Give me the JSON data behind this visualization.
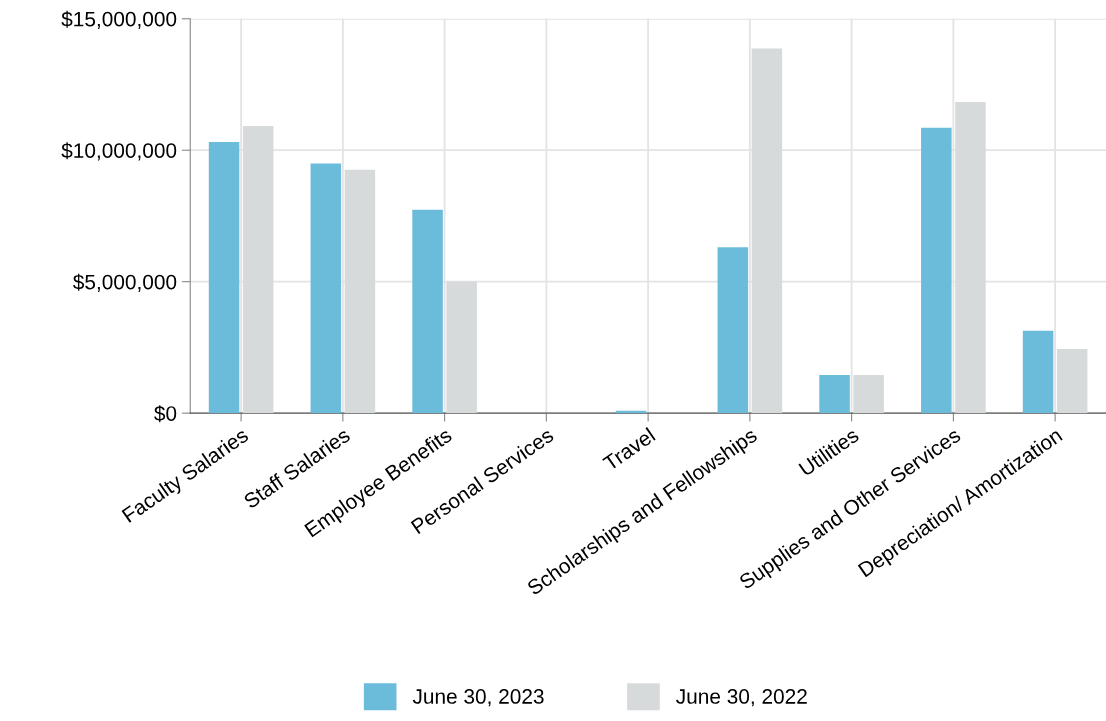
{
  "chart_data": {
    "type": "bar",
    "categories": [
      "Faculty Salaries",
      "Staff Salaries",
      "Employee Benefits",
      "Personal Services",
      "Travel",
      "Scholarships and Fellowships",
      "Utilities",
      "Supplies and Other Services",
      "Depreciation/ Amortization"
    ],
    "series": [
      {
        "name": "June 30, 2023",
        "color": "#6bbbdb",
        "values": [
          10310000,
          9490000,
          7740000,
          0,
          90000,
          6310000,
          1450000,
          10850000,
          3130000
        ]
      },
      {
        "name": "June 30, 2022",
        "color": "#d7dadb",
        "values": [
          10920000,
          9260000,
          5010000,
          0,
          0,
          13870000,
          1450000,
          11830000,
          2440000
        ]
      }
    ],
    "ylim": [
      0,
      15000000
    ],
    "yticks": [
      {
        "value": 0,
        "label": "$0"
      },
      {
        "value": 5000000,
        "label": "$5,000,000"
      },
      {
        "value": 10000000,
        "label": "$10,000,000"
      },
      {
        "value": 15000000,
        "label": "$15,000,000"
      }
    ],
    "grid": true,
    "legend": "bottom"
  }
}
